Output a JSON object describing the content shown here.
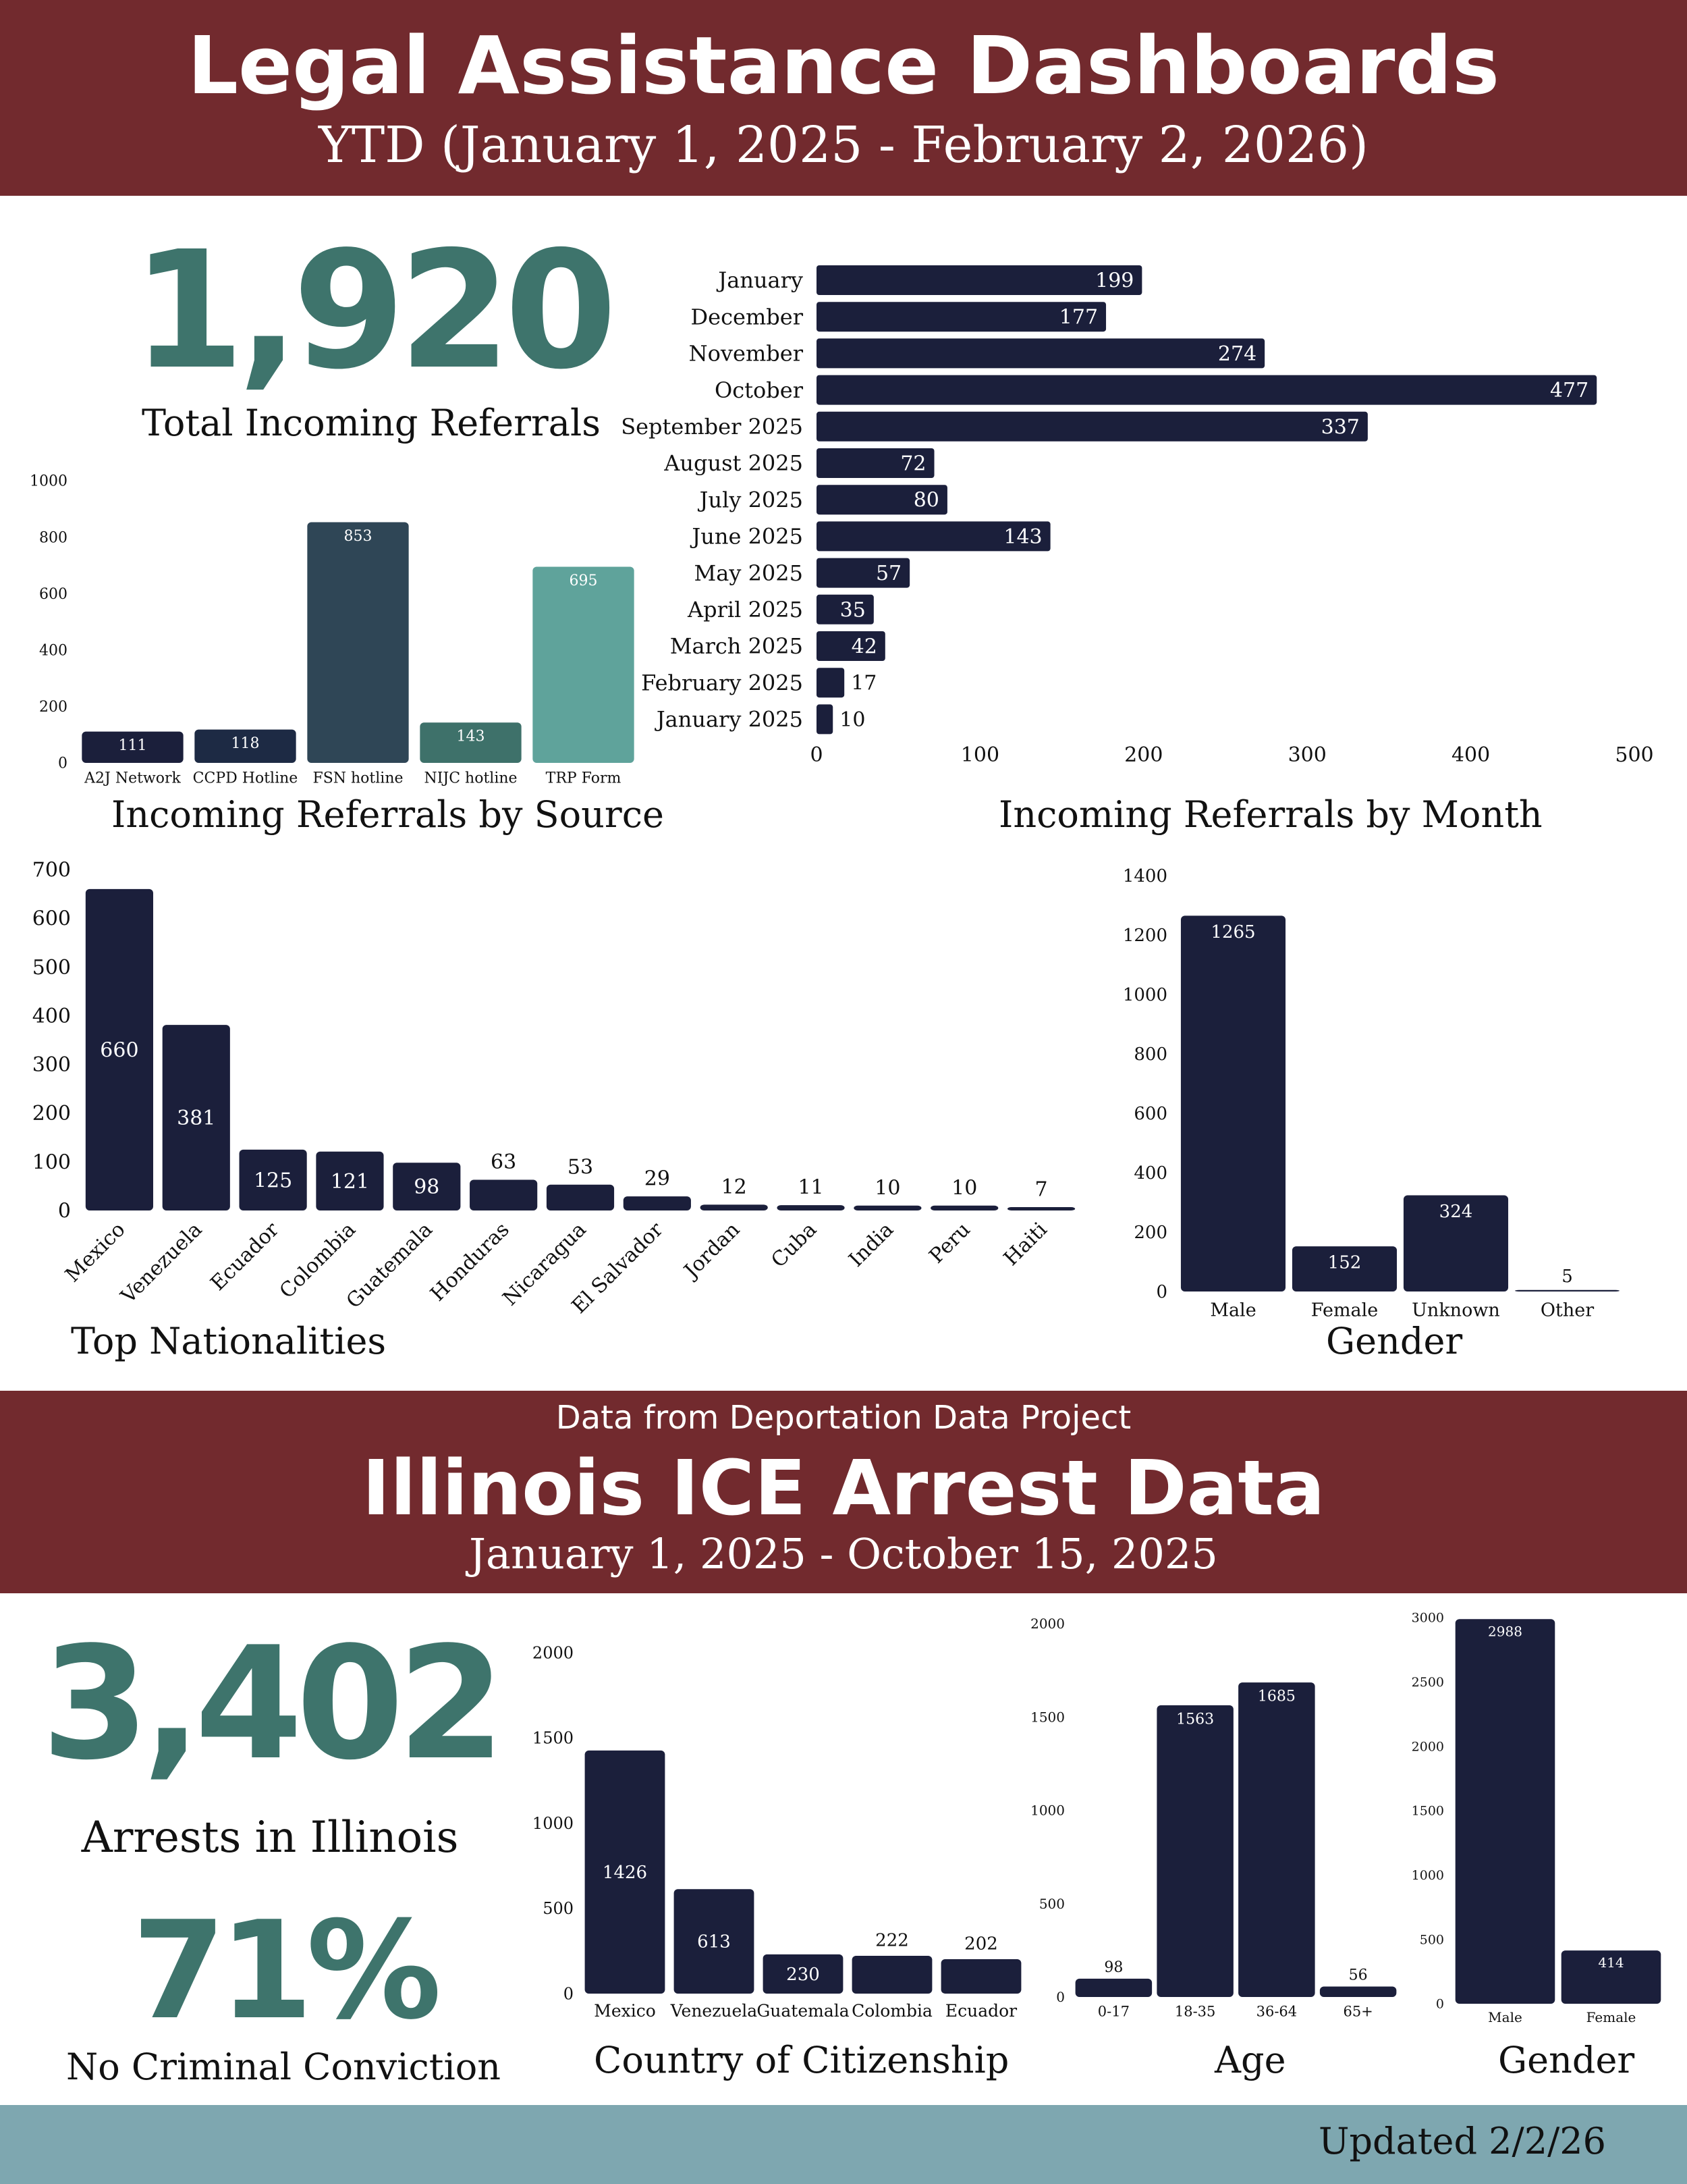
{
  "header": {
    "title": "Legal Assistance Dashboards",
    "subtitle": "YTD (January 1, 2025 - February 2, 2026)"
  },
  "referrals": {
    "total": "1,920",
    "total_label": "Total Incoming Referrals"
  },
  "ice_section": {
    "source_note": "Data from Deportation Data Project",
    "title": "Illinois ICE Arrest Data",
    "subtitle": "January 1, 2025 - October 15, 2025",
    "arrests_total": "3,402",
    "arrests_label": "Arrests in Illinois",
    "no_conviction_pct": "71%",
    "no_conviction_label": "No Criminal Conviction"
  },
  "footer": {
    "updated": "Updated 2/2/26"
  },
  "colors": {
    "header_band": "#722a2e",
    "navy": "#1b1f3b",
    "teal_kpi": "#3e746c",
    "footer_band": "#7ea7b0"
  },
  "chart_data": [
    {
      "id": "source",
      "type": "bar",
      "title": "Incoming Referrals by Source",
      "categories": [
        "A2J Network",
        "CCPD Hotline",
        "FSN hotline",
        "NIJC hotline",
        "TRP Form"
      ],
      "values": [
        111,
        118,
        853,
        143,
        695
      ],
      "colors": [
        "#1b1f3b",
        "#1d2a44",
        "#2f4656",
        "#3e716a",
        "#5fa39b"
      ],
      "ylim": [
        0,
        1000
      ],
      "yticks": [
        0,
        200,
        400,
        600,
        800,
        1000
      ],
      "data_labels": "inside-top",
      "grid": false
    },
    {
      "id": "month",
      "type": "bar",
      "orientation": "horizontal",
      "title": "Incoming Referrals by Month",
      "categories": [
        "January",
        "December",
        "November",
        "October",
        "September 2025",
        "August 2025",
        "July 2025",
        "June 2025",
        "May 2025",
        "April 2025",
        "March 2025",
        "February 2025",
        "January 2025"
      ],
      "values": [
        199,
        177,
        274,
        477,
        337,
        72,
        80,
        143,
        57,
        35,
        42,
        17,
        10
      ],
      "color": "#1b1f3b",
      "xlim": [
        0,
        500
      ],
      "xticks": [
        0,
        100,
        200,
        300,
        400,
        500
      ],
      "data_labels": "inside-end",
      "grid": false
    },
    {
      "id": "nationality",
      "type": "bar",
      "title": "Top Nationalities",
      "categories": [
        "Mexico",
        "Venezuela",
        "Ecuador",
        "Colombia",
        "Guatemala",
        "Honduras",
        "Nicaragua",
        "El Salvador",
        "Jordan",
        "Cuba",
        "India",
        "Peru",
        "Haiti"
      ],
      "values": [
        660,
        381,
        125,
        121,
        98,
        63,
        53,
        29,
        12,
        11,
        10,
        10,
        7
      ],
      "color": "#1b1f3b",
      "ylim": [
        0,
        700
      ],
      "yticks": [
        0,
        100,
        200,
        300,
        400,
        500,
        600,
        700
      ],
      "data_labels": "center",
      "grid": false
    },
    {
      "id": "gender_ref",
      "type": "bar",
      "title": "Gender",
      "categories": [
        "Male",
        "Female",
        "Unknown",
        "Other"
      ],
      "values": [
        1265,
        152,
        324,
        5
      ],
      "color": "#1b1f3b",
      "ylim": [
        0,
        1400
      ],
      "yticks": [
        0,
        200,
        400,
        600,
        800,
        1000,
        1200,
        1400
      ],
      "data_labels": "inside-top",
      "grid": false
    },
    {
      "id": "citizenship",
      "type": "bar",
      "title": "Country of Citizenship",
      "categories": [
        "Mexico",
        "Venezuela",
        "Guatemala",
        "Colombia",
        "Ecuador"
      ],
      "values": [
        1426,
        613,
        230,
        222,
        202
      ],
      "color": "#1b1f3b",
      "ylim": [
        0,
        2000
      ],
      "yticks": [
        0,
        500,
        1000,
        1500,
        2000
      ],
      "data_labels": "center",
      "grid": false
    },
    {
      "id": "age",
      "type": "bar",
      "title": "Age",
      "categories": [
        "0-17",
        "18-35",
        "36-64",
        "65+"
      ],
      "values": [
        98,
        1563,
        1685,
        56
      ],
      "color": "#1b1f3b",
      "ylim": [
        0,
        2000
      ],
      "yticks": [
        0,
        500,
        1000,
        1500,
        2000
      ],
      "data_labels": "inside-top",
      "grid": false
    },
    {
      "id": "gender_ice",
      "type": "bar",
      "title": "Gender",
      "categories": [
        "Male",
        "Female"
      ],
      "values": [
        2988,
        414
      ],
      "color": "#1b1f3b",
      "ylim": [
        0,
        3000
      ],
      "yticks": [
        0,
        500,
        1000,
        1500,
        2000,
        2500,
        3000
      ],
      "data_labels": "inside-top",
      "grid": false
    }
  ]
}
